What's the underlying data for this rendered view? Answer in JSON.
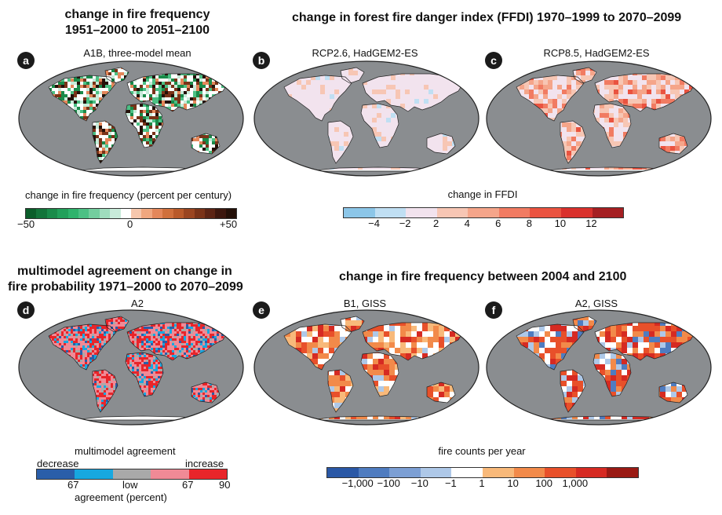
{
  "section_titles": {
    "fire_frequency": [
      "change in fire frequency",
      "1951–2000 to 2051–2100"
    ],
    "ffdi": "change in forest fire danger index (FFDI) 1970–1999 to 2070–2099",
    "agreement": [
      "multimodel agreement on change in",
      "fire probability 1971–2000 to 2070–2099"
    ],
    "fire_frequency_2004": "change in fire frequency between 2004 and 2100"
  },
  "panels": [
    {
      "letter": "a",
      "subtitle": "A1B, three-model mean"
    },
    {
      "letter": "b",
      "subtitle": "RCP2.6, HadGEM2-ES"
    },
    {
      "letter": "c",
      "subtitle": "RCP8.5, HadGEM2-ES"
    },
    {
      "letter": "d",
      "subtitle": "A2"
    },
    {
      "letter": "e",
      "subtitle": "B1, GISS"
    },
    {
      "letter": "f",
      "subtitle": "A2, GISS"
    }
  ],
  "legends": {
    "fire_frequency": {
      "title": "change in fire frequency (percent per century)",
      "ticks": [
        "−50",
        "0",
        "+50"
      ],
      "colors": [
        "#0b5d2a",
        "#13743a",
        "#1a8b4a",
        "#22a05a",
        "#2fb36c",
        "#4cc084",
        "#73cd9e",
        "#9fdcbd",
        "#c8ebda",
        "#ffffff",
        "#f6c7ad",
        "#f0a77f",
        "#e4875a",
        "#d0703c",
        "#b95a2a",
        "#9a4520",
        "#7a3318",
        "#5c2414",
        "#3d170e",
        "#241008"
      ]
    },
    "ffdi": {
      "title": "change in FFDI",
      "ticks": [
        "−4",
        "−2",
        "2",
        "4",
        "6",
        "8",
        "10",
        "12"
      ],
      "colors": [
        "#8cc6e8",
        "#c0dff3",
        "#f2e3ee",
        "#f7c6b4",
        "#f5a58a",
        "#f17b62",
        "#ea5340",
        "#d9312c",
        "#a51f22"
      ]
    },
    "agreement": {
      "title": "multimodel agreement",
      "decrease_label": "decrease",
      "increase_label": "increase",
      "ticks": [
        "67",
        "low",
        "67",
        "90"
      ],
      "axis_label": "agreement (percent)",
      "colors": [
        "#2a5ea9",
        "#17a8e0",
        "#a9a9a9",
        "#f08a96",
        "#e8252a"
      ]
    },
    "fire_counts": {
      "title": "fire counts per year",
      "ticks": [
        "−1,000",
        "−100",
        "−10",
        "−1",
        "1",
        "10",
        "100",
        "1,000"
      ],
      "colors": [
        "#2a58a6",
        "#4f7cc0",
        "#7c9fd4",
        "#aec8e8",
        "#ffffff",
        "#f8b97a",
        "#f28a4a",
        "#e8502a",
        "#d62a22",
        "#9a1a14"
      ]
    }
  }
}
